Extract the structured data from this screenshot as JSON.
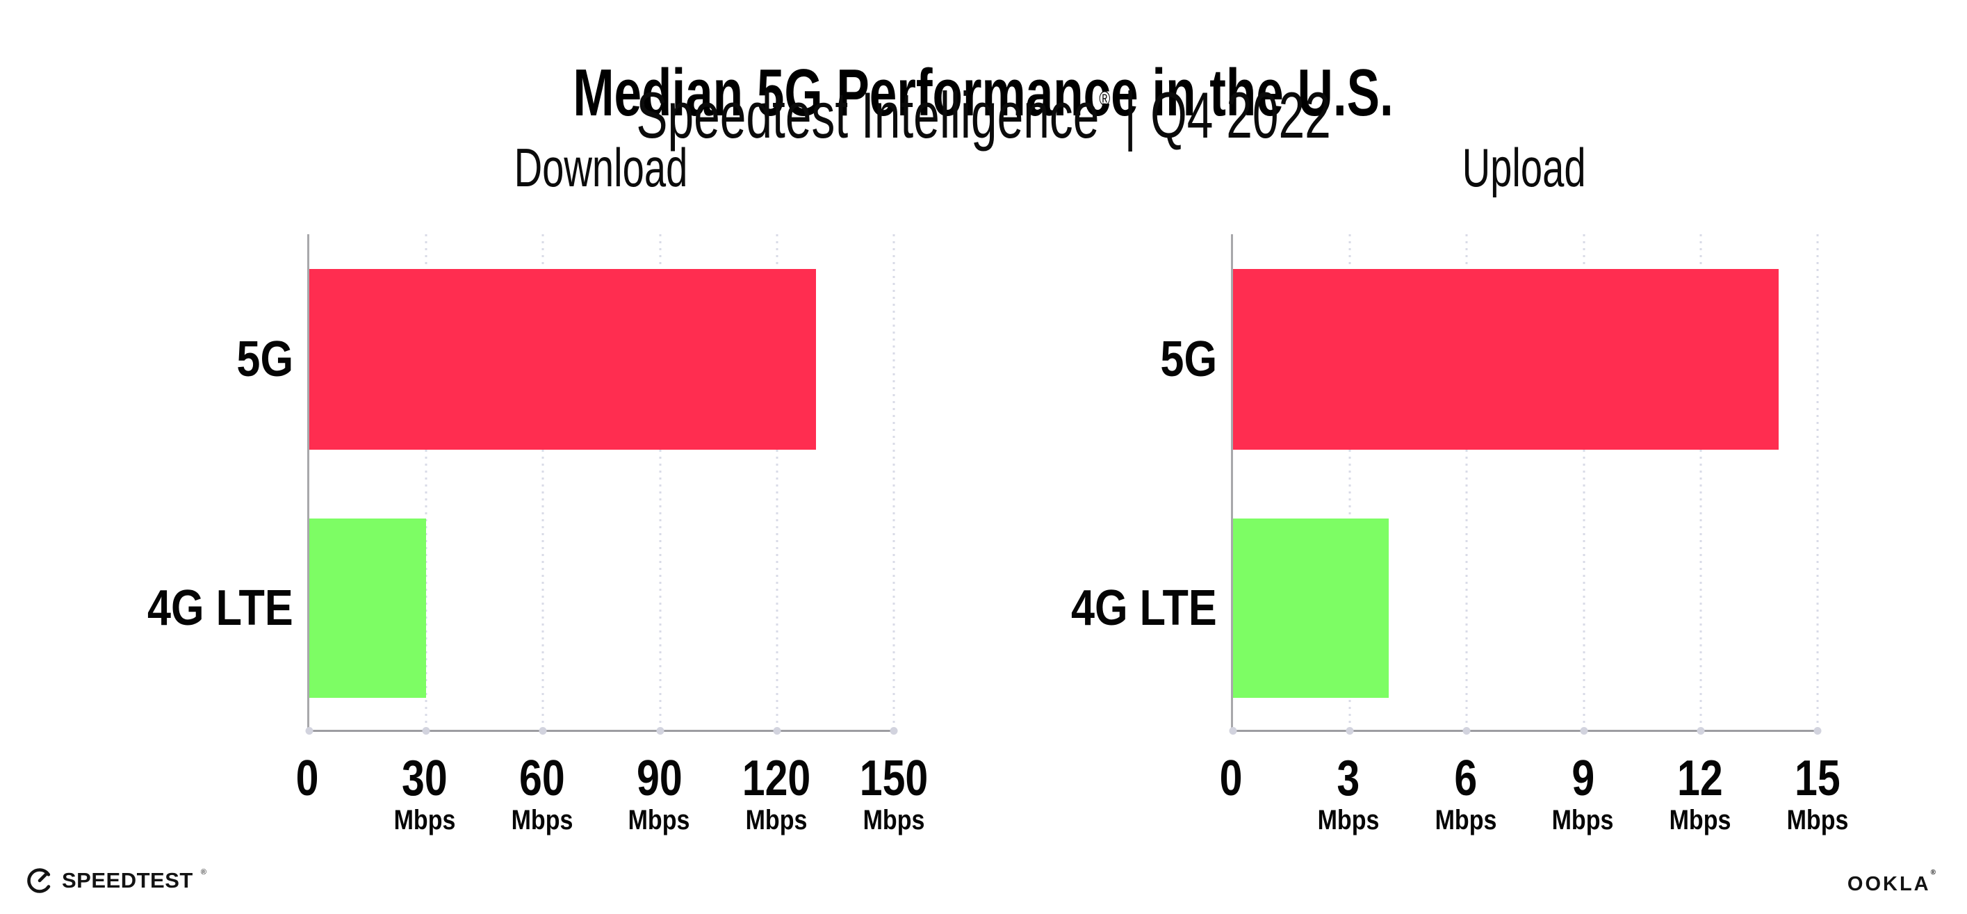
{
  "header": {
    "title": "Median 5G Performance in the U.S.",
    "subtitle_brand": "Speedtest Intelligence",
    "subtitle_reg": "®",
    "subtitle_separator": "|",
    "subtitle_period": "Q4 2022"
  },
  "chart_data": [
    {
      "type": "bar",
      "orientation": "horizontal",
      "title": "Download",
      "unit": "Mbps",
      "categories": [
        "5G",
        "4G LTE"
      ],
      "values": [
        130,
        30
      ],
      "bar_colors": [
        "#FF2D50",
        "#7DFD64"
      ],
      "xlim": [
        0,
        150
      ],
      "ticks": [
        0,
        30,
        60,
        90,
        120,
        150
      ],
      "grid": "dotted vertical gridlines at each tick",
      "legend": "none"
    },
    {
      "type": "bar",
      "orientation": "horizontal",
      "title": "Upload",
      "unit": "Mbps",
      "categories": [
        "5G",
        "4G LTE"
      ],
      "values": [
        14,
        4
      ],
      "bar_colors": [
        "#FF2D50",
        "#7DFD64"
      ],
      "xlim": [
        0,
        15
      ],
      "ticks": [
        0,
        3,
        6,
        9,
        12,
        15
      ],
      "grid": "dotted vertical gridlines at each tick",
      "legend": "none"
    }
  ],
  "footer": {
    "speedtest_label": "SPEEDTEST",
    "speedtest_reg": "®",
    "ookla_label": "OOKLA",
    "ookla_reg": "®"
  },
  "colors": {
    "bar_5g": "#FF2D50",
    "bar_4g_lte": "#7DFD64",
    "axis": "#A3A3A8",
    "gridline": "#D9DBE7",
    "text": "#000000"
  }
}
